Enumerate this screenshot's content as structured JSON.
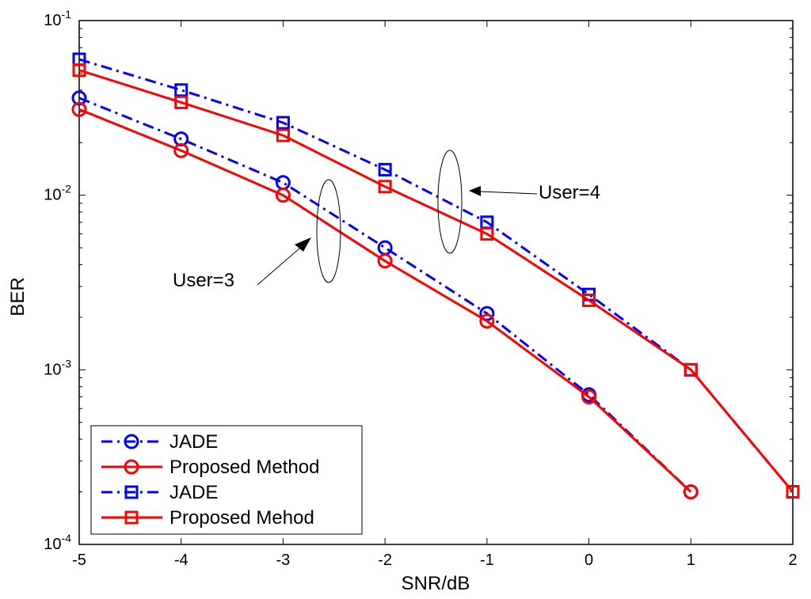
{
  "chart_data": {
    "type": "line",
    "xlabel": "SNR/dB",
    "ylabel": "BER",
    "yscale": "log",
    "xlim": [
      -5,
      2
    ],
    "ylim": [
      0.0001,
      0.1
    ],
    "x_ticks": [
      "-5",
      "-4",
      "-3",
      "-2",
      "-1",
      "0",
      "1",
      "2"
    ],
    "y_ticks": [
      {
        "base": "10",
        "exp": "-1",
        "value": 0.1
      },
      {
        "base": "10",
        "exp": "-2",
        "value": 0.01
      },
      {
        "base": "10",
        "exp": "-3",
        "value": 0.001
      },
      {
        "base": "10",
        "exp": "-4",
        "value": 0.0001
      }
    ],
    "grid": false,
    "legend_position": "bottom-left",
    "series": [
      {
        "name": "JADE",
        "color": "#0000ff",
        "dash": "dashdot",
        "marker": "circle",
        "x": [
          -5,
          -4,
          -3,
          -2,
          -1,
          0,
          1
        ],
        "y": [
          0.036,
          0.021,
          0.0118,
          0.005,
          0.0021,
          0.00072,
          0.0002
        ]
      },
      {
        "name": "Proposed Method",
        "color": "#ff0000",
        "dash": "solid",
        "marker": "circle",
        "x": [
          -5,
          -4,
          -3,
          -2,
          -1,
          0,
          1
        ],
        "y": [
          0.031,
          0.018,
          0.01,
          0.0042,
          0.0019,
          0.0007,
          0.0002
        ]
      },
      {
        "name": "JADE",
        "color": "#0000ff",
        "dash": "dashdot",
        "marker": "square",
        "x": [
          -5,
          -4,
          -3,
          -2,
          -1,
          0,
          1,
          2
        ],
        "y": [
          0.06,
          0.04,
          0.026,
          0.014,
          0.007,
          0.0027,
          0.001,
          0.0002
        ]
      },
      {
        "name": "Proposed Mehod",
        "color": "#ff0000",
        "dash": "solid",
        "marker": "square",
        "x": [
          -5,
          -4,
          -3,
          -2,
          -1,
          0,
          1,
          2
        ],
        "y": [
          0.052,
          0.034,
          0.022,
          0.0112,
          0.006,
          0.0025,
          0.001,
          0.0002
        ]
      }
    ],
    "annotations": [
      {
        "text": "User=3",
        "x": -3.4,
        "y": 0.0026,
        "arrow_to_x": -2.7,
        "arrow_to_y": 0.0056
      },
      {
        "text": "User=4",
        "x": -1.1,
        "y": 0.0093,
        "arrow_to_x": -1.2,
        "arrow_to_y": 0.0093
      }
    ]
  }
}
